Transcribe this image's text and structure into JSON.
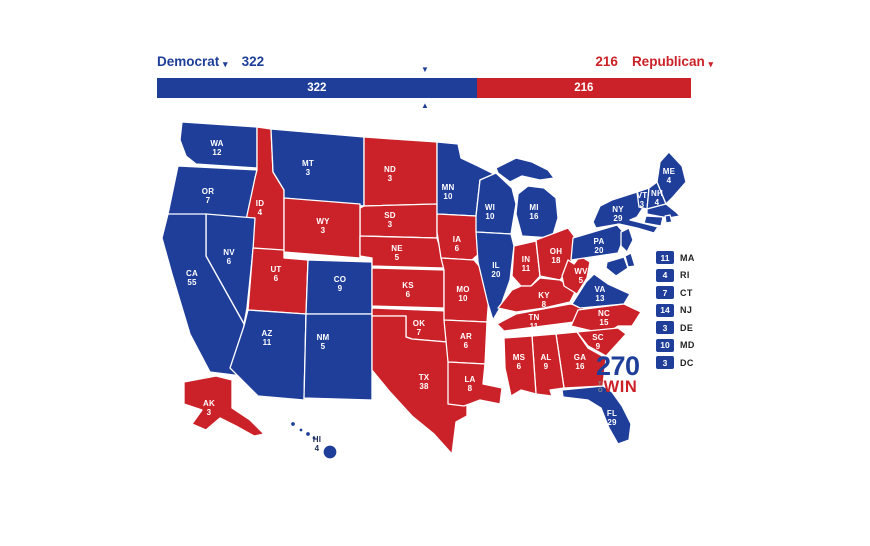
{
  "colors": {
    "democrat": "#1e3e9a",
    "republican": "#cb2128"
  },
  "header": {
    "democrat": {
      "label": "Democrat",
      "votes": 322
    },
    "republican": {
      "label": "Republican",
      "votes": 216
    },
    "caret": "▾"
  },
  "bar": {
    "marker_value": 270,
    "marker_down": "▼",
    "marker_up": "▲"
  },
  "map": {
    "states": {
      "WA": {
        "abbr": "WA",
        "votes": 12,
        "party": "D"
      },
      "OR": {
        "abbr": "OR",
        "votes": 7,
        "party": "D"
      },
      "CA": {
        "abbr": "CA",
        "votes": 55,
        "party": "D"
      },
      "NV": {
        "abbr": "NV",
        "votes": 6,
        "party": "D"
      },
      "ID": {
        "abbr": "ID",
        "votes": 4,
        "party": "R"
      },
      "MT": {
        "abbr": "MT",
        "votes": 3,
        "party": "D"
      },
      "WY": {
        "abbr": "WY",
        "votes": 3,
        "party": "R"
      },
      "UT": {
        "abbr": "UT",
        "votes": 6,
        "party": "R"
      },
      "CO": {
        "abbr": "CO",
        "votes": 9,
        "party": "D"
      },
      "AZ": {
        "abbr": "AZ",
        "votes": 11,
        "party": "D"
      },
      "NM": {
        "abbr": "NM",
        "votes": 5,
        "party": "D"
      },
      "ND": {
        "abbr": "ND",
        "votes": 3,
        "party": "R"
      },
      "SD": {
        "abbr": "SD",
        "votes": 3,
        "party": "R"
      },
      "NE": {
        "abbr": "NE",
        "votes": 5,
        "party": "R"
      },
      "KS": {
        "abbr": "KS",
        "votes": 6,
        "party": "R"
      },
      "OK": {
        "abbr": "OK",
        "votes": 7,
        "party": "R"
      },
      "TX": {
        "abbr": "TX",
        "votes": 38,
        "party": "R"
      },
      "MN": {
        "abbr": "MN",
        "votes": 10,
        "party": "D"
      },
      "IA": {
        "abbr": "IA",
        "votes": 6,
        "party": "R"
      },
      "MO": {
        "abbr": "MO",
        "votes": 10,
        "party": "R"
      },
      "AR": {
        "abbr": "AR",
        "votes": 6,
        "party": "R"
      },
      "LA": {
        "abbr": "LA",
        "votes": 8,
        "party": "R"
      },
      "WI": {
        "abbr": "WI",
        "votes": 10,
        "party": "D"
      },
      "IL": {
        "abbr": "IL",
        "votes": 20,
        "party": "D"
      },
      "MS": {
        "abbr": "MS",
        "votes": 6,
        "party": "R"
      },
      "MI": {
        "abbr": "MI",
        "votes": 16,
        "party": "D"
      },
      "IN": {
        "abbr": "IN",
        "votes": 11,
        "party": "R"
      },
      "OH": {
        "abbr": "OH",
        "votes": 18,
        "party": "R"
      },
      "KY": {
        "abbr": "KY",
        "votes": 8,
        "party": "R"
      },
      "TN": {
        "abbr": "TN",
        "votes": 11,
        "party": "R"
      },
      "AL": {
        "abbr": "AL",
        "votes": 9,
        "party": "R"
      },
      "GA": {
        "abbr": "GA",
        "votes": 16,
        "party": "R"
      },
      "WV": {
        "abbr": "WV",
        "votes": 5,
        "party": "R"
      },
      "VA": {
        "abbr": "VA",
        "votes": 13,
        "party": "D"
      },
      "NC": {
        "abbr": "NC",
        "votes": 15,
        "party": "R"
      },
      "SC": {
        "abbr": "SC",
        "votes": 9,
        "party": "R"
      },
      "FL": {
        "abbr": "FL",
        "votes": 29,
        "party": "D"
      },
      "PA": {
        "abbr": "PA",
        "votes": 20,
        "party": "D"
      },
      "NY": {
        "abbr": "NY",
        "votes": 29,
        "party": "D"
      },
      "ME": {
        "abbr": "ME",
        "votes": 4,
        "party": "D"
      },
      "VT": {
        "abbr": "VT",
        "votes": 3,
        "party": "D"
      },
      "NH": {
        "abbr": "NH",
        "votes": 4,
        "party": "D"
      },
      "AK": {
        "abbr": "AK",
        "votes": 3,
        "party": "R"
      },
      "HI": {
        "abbr": "HI",
        "votes": 4,
        "party": "D"
      },
      "MA": {
        "abbr": "MA",
        "votes": 11,
        "party": "D"
      },
      "RI": {
        "abbr": "RI",
        "votes": 4,
        "party": "D"
      },
      "CT": {
        "abbr": "CT",
        "votes": 7,
        "party": "D"
      },
      "NJ": {
        "abbr": "NJ",
        "votes": 14,
        "party": "D"
      },
      "DE": {
        "abbr": "DE",
        "votes": 3,
        "party": "D"
      },
      "MD": {
        "abbr": "MD",
        "votes": 10,
        "party": "D"
      },
      "DC": {
        "abbr": "DC",
        "votes": 3,
        "party": "D"
      }
    }
  },
  "legend": {
    "items": [
      {
        "abbr": "MA",
        "votes": 11
      },
      {
        "abbr": "RI",
        "votes": 4
      },
      {
        "abbr": "CT",
        "votes": 7
      },
      {
        "abbr": "NJ",
        "votes": 14
      },
      {
        "abbr": "DE",
        "votes": 3
      },
      {
        "abbr": "MD",
        "votes": 10
      },
      {
        "abbr": "DC",
        "votes": 3
      }
    ]
  },
  "logo": {
    "line1": "270",
    "to_t": "T",
    "to_o": "O",
    "win": "WIN"
  }
}
